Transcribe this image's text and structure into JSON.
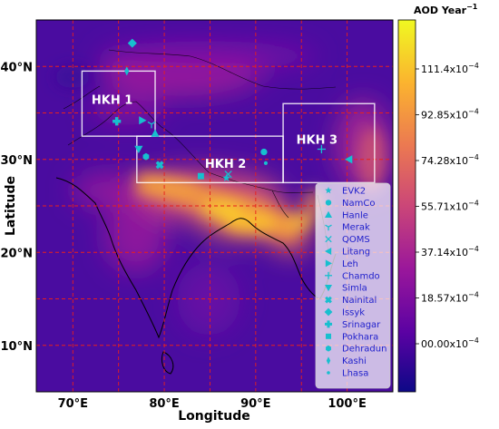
{
  "map": {
    "extent": {
      "lon": [
        66,
        105
      ],
      "lat": [
        5,
        45
      ]
    },
    "xticks": [
      {
        "lon": 70,
        "label": "70°E"
      },
      {
        "lon": 80,
        "label": "80°E"
      },
      {
        "lon": 90,
        "label": "90°E"
      },
      {
        "lon": 100,
        "label": "100°E"
      }
    ],
    "yticks": [
      {
        "lat": 10,
        "label": "10°N"
      },
      {
        "lat": 20,
        "label": "20°N"
      },
      {
        "lat": 30,
        "label": "30°N"
      },
      {
        "lat": 40,
        "label": "40°N"
      }
    ],
    "xlabel": "Longitude",
    "ylabel": "Latitude",
    "grid_color": "#e8201c"
  },
  "colorbar": {
    "title": "AOD Year",
    "title_exponent": "−1",
    "ticks": [
      "111.4x10",
      "92.85x10",
      "74.28x10",
      "55.71x10",
      "37.14x10",
      "18.57x10",
      "00.00x10"
    ],
    "tick_exponent": "−4",
    "colors": [
      "#0d0887",
      "#5b02a3",
      "#9a179b",
      "#cb4678",
      "#eb7852",
      "#fbb32f",
      "#f0f921"
    ]
  },
  "regions": [
    {
      "label": "HKH 1",
      "lon": [
        71,
        79
      ],
      "lat": [
        32.5,
        39.5
      ]
    },
    {
      "label": "HKH 2",
      "lon": [
        77,
        93
      ],
      "lat": [
        27.5,
        32.5
      ]
    },
    {
      "label": "HKH 3",
      "lon": [
        93,
        103
      ],
      "lat": [
        27.5,
        36
      ]
    }
  ],
  "stations": [
    {
      "name": "EVK2",
      "lon": 86.8,
      "lat": 28.0,
      "shape": "star"
    },
    {
      "name": "NamCo",
      "lon": 90.9,
      "lat": 30.8,
      "shape": "circle"
    },
    {
      "name": "Hanle",
      "lon": 79.0,
      "lat": 32.8,
      "shape": "triangle-up"
    },
    {
      "name": "Merak",
      "lon": 78.6,
      "lat": 33.8,
      "shape": "tri-down"
    },
    {
      "name": "QOMS",
      "lon": 87.0,
      "lat": 28.4,
      "shape": "x"
    },
    {
      "name": "Litang",
      "lon": 100.2,
      "lat": 30.0,
      "shape": "triangle-left"
    },
    {
      "name": "Leh",
      "lon": 77.6,
      "lat": 34.2,
      "shape": "triangle-right"
    },
    {
      "name": "Chamdo",
      "lon": 97.2,
      "lat": 31.1,
      "shape": "plus-thin"
    },
    {
      "name": "Simla",
      "lon": 77.2,
      "lat": 31.1,
      "shape": "triangle-down"
    },
    {
      "name": "Nainital",
      "lon": 79.5,
      "lat": 29.4,
      "shape": "x-filled"
    },
    {
      "name": "Issyk",
      "lon": 76.5,
      "lat": 42.5,
      "shape": "diamond"
    },
    {
      "name": "Srinagar",
      "lon": 74.8,
      "lat": 34.1,
      "shape": "plus-filled"
    },
    {
      "name": "Pokhara",
      "lon": 84.0,
      "lat": 28.2,
      "shape": "square"
    },
    {
      "name": "Dehradun",
      "lon": 78.0,
      "lat": 30.3,
      "shape": "hexagon"
    },
    {
      "name": "Kashi",
      "lon": 75.9,
      "lat": 39.5,
      "shape": "thin-diamond"
    },
    {
      "name": "Lhasa",
      "lon": 91.1,
      "lat": 29.6,
      "shape": "dot"
    }
  ],
  "marker_color": "#17bfcf"
}
